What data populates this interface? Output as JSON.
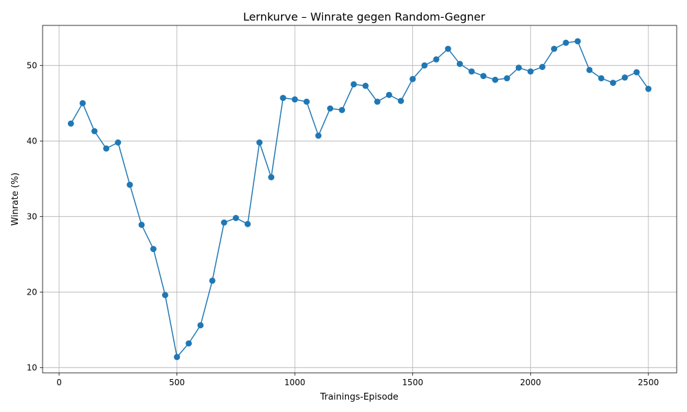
{
  "chart_data": {
    "type": "line",
    "title": "Lernkurve – Winrate gegen Random-Gegner",
    "xlabel": "Trainings-Episode",
    "ylabel": "Winrate (%)",
    "xlim": [
      -70,
      2620
    ],
    "ylim": [
      9.3,
      55.3
    ],
    "xticks": [
      0,
      500,
      1000,
      1500,
      2000,
      2500
    ],
    "yticks": [
      10,
      20,
      30,
      40,
      50
    ],
    "grid": true,
    "series": [
      {
        "color": "#1f77b4",
        "x": [
          50,
          100,
          150,
          200,
          250,
          300,
          350,
          400,
          450,
          500,
          550,
          600,
          650,
          700,
          750,
          800,
          850,
          900,
          950,
          1000,
          1050,
          1100,
          1150,
          1200,
          1250,
          1300,
          1350,
          1400,
          1450,
          1500,
          1550,
          1600,
          1650,
          1700,
          1750,
          1800,
          1850,
          1900,
          1950,
          2000,
          2050,
          2100,
          2150,
          2200,
          2250,
          2300,
          2350,
          2400,
          2450,
          2500
        ],
        "y": [
          42.3,
          45.0,
          41.3,
          39.0,
          39.8,
          34.2,
          28.9,
          25.7,
          19.6,
          11.4,
          13.2,
          15.6,
          21.5,
          29.2,
          29.8,
          29.0,
          39.8,
          35.2,
          45.7,
          45.5,
          45.2,
          40.7,
          44.3,
          44.1,
          47.5,
          47.3,
          45.2,
          46.1,
          45.3,
          48.2,
          50.0,
          50.8,
          52.2,
          50.2,
          49.2,
          48.6,
          48.1,
          48.3,
          49.7,
          49.2,
          49.8,
          52.2,
          53.0,
          53.2,
          49.4,
          48.3,
          47.7,
          48.4,
          49.1,
          46.9
        ]
      }
    ]
  }
}
